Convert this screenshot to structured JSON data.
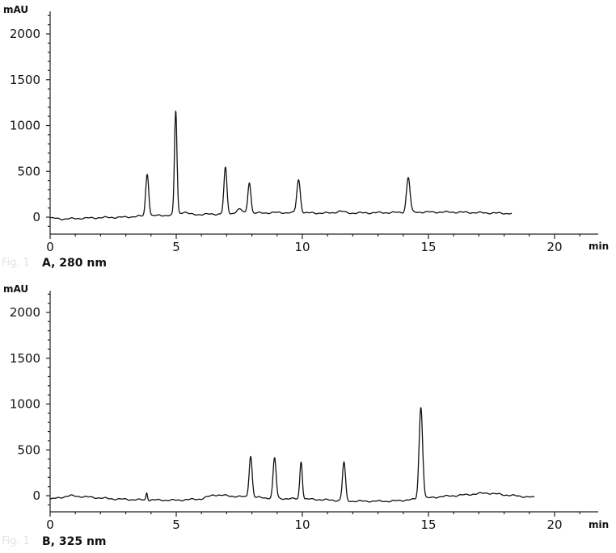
{
  "chart_data": [
    {
      "type": "line",
      "title": "",
      "caption_prefix": "Fig. 1",
      "caption": "A, 280 nm",
      "ylabel": "mAU",
      "xlabel": "min",
      "xlim": [
        0,
        22.5
      ],
      "ylim": [
        -180,
        2250
      ],
      "xticks": [
        0,
        5,
        10,
        15,
        20
      ],
      "yticks": [
        0,
        500,
        1000,
        1500,
        2000
      ],
      "series": [
        {
          "baseline": [
            [
              0,
              -10
            ],
            [
              0.5,
              -20
            ],
            [
              1,
              -15
            ],
            [
              2,
              -5
            ],
            [
              3,
              0
            ],
            [
              3.5,
              10
            ],
            [
              4.5,
              20
            ],
            [
              6,
              30
            ],
            [
              7.5,
              40
            ],
            [
              9,
              50
            ],
            [
              10.5,
              45
            ],
            [
              12,
              45
            ],
            [
              13.5,
              50
            ],
            [
              14.5,
              55
            ],
            [
              16,
              55
            ],
            [
              18.3,
              40
            ]
          ],
          "peaks": [
            {
              "t": 3.85,
              "h": 460,
              "w": 0.06
            },
            {
              "t": 4.98,
              "h": 1130,
              "w": 0.05
            },
            {
              "t": 5.3,
              "h": 30,
              "w": 0.15
            },
            {
              "t": 6.95,
              "h": 500,
              "w": 0.06
            },
            {
              "t": 7.5,
              "h": 45,
              "w": 0.12
            },
            {
              "t": 7.9,
              "h": 340,
              "w": 0.06
            },
            {
              "t": 9.85,
              "h": 360,
              "w": 0.07
            },
            {
              "t": 11.5,
              "h": 20,
              "w": 0.15
            },
            {
              "t": 14.2,
              "h": 380,
              "w": 0.07
            }
          ]
        }
      ]
    },
    {
      "type": "line",
      "title": "",
      "caption_prefix": "Fig. 1",
      "caption": "B, 325 nm",
      "ylabel": "mAU",
      "xlabel": "min",
      "xlim": [
        0,
        22.5
      ],
      "ylim": [
        -180,
        2250
      ],
      "xticks": [
        0,
        5,
        10,
        15,
        20
      ],
      "yticks": [
        0,
        500,
        1000,
        1500,
        2000
      ],
      "series": [
        {
          "baseline": [
            [
              0,
              -40
            ],
            [
              0.8,
              0
            ],
            [
              1.5,
              -15
            ],
            [
              2.5,
              -35
            ],
            [
              3.5,
              -45
            ],
            [
              5,
              -50
            ],
            [
              6,
              -35
            ],
            [
              6.5,
              10
            ],
            [
              7.5,
              -10
            ],
            [
              9,
              -30
            ],
            [
              10.5,
              -40
            ],
            [
              12,
              -60
            ],
            [
              13.5,
              -60
            ],
            [
              14.5,
              -40
            ],
            [
              15.5,
              -10
            ],
            [
              16.5,
              10
            ],
            [
              17.3,
              30
            ],
            [
              18,
              10
            ],
            [
              19.2,
              -20
            ]
          ],
          "peaks": [
            {
              "t": 3.83,
              "h": 80,
              "w": 0.03
            },
            {
              "t": 7.95,
              "h": 450,
              "w": 0.06
            },
            {
              "t": 8.9,
              "h": 440,
              "w": 0.06
            },
            {
              "t": 9.95,
              "h": 410,
              "w": 0.05
            },
            {
              "t": 11.65,
              "h": 420,
              "w": 0.06
            },
            {
              "t": 14.7,
              "h": 1000,
              "w": 0.07
            }
          ]
        }
      ]
    }
  ]
}
